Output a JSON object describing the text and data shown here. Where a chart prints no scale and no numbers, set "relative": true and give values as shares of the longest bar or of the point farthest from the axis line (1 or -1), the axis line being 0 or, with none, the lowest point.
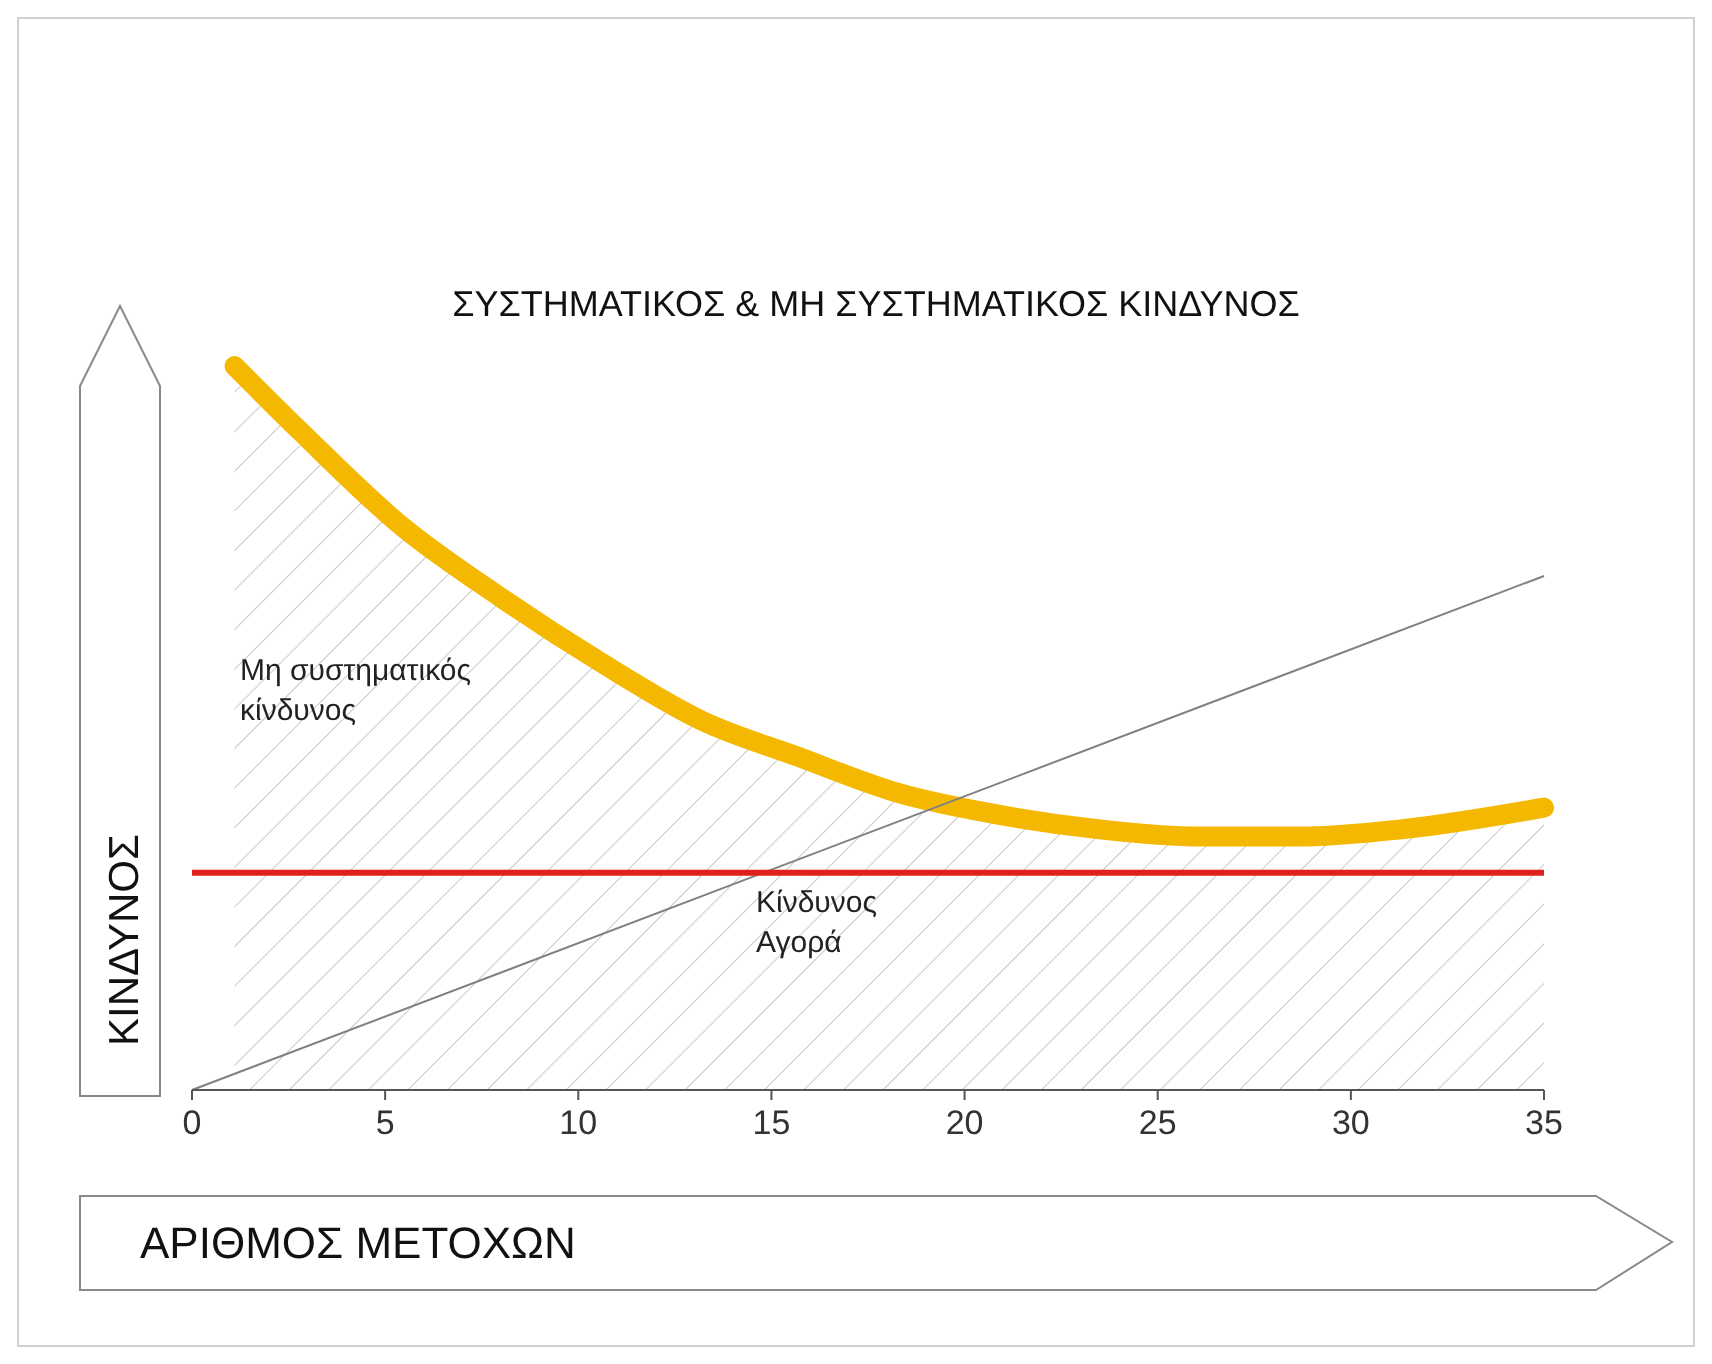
{
  "chart_data": {
    "type": "line",
    "title": "ΣΥΣΤΗΜΑΤΙΚΟΣ & ΜΗ ΣΥΣΤΗΜΑΤΙΚΟΣ ΚΙΝΔΥΝΟΣ",
    "xlabel": "ΑΡΙΘΜΟΣ ΜΕΤΟΧΩΝ",
    "ylabel": "ΚΙΝΔΥΝΟΣ",
    "relative": true,
    "xlim": [
      0,
      35
    ],
    "xticks": [
      0,
      5,
      10,
      15,
      20,
      25,
      30,
      35
    ],
    "tick_labels": "x",
    "grid": false,
    "marker": "none",
    "line_style": "solid",
    "annotations": [
      "Μη συστηματικός\nκίνδυνος",
      "Κίνδυνος\nΑγορά"
    ],
    "series": [
      {
        "type": "area",
        "color": "#f5b800",
        "x": [
          1.1,
          2.8,
          5.4,
          8,
          10.6,
          13.2,
          15.7,
          18.3,
          20.9,
          23.5,
          26.1,
          28.7,
          31.3,
          35
        ],
        "values": [
          1,
          0.91,
          0.78,
          0.68,
          0.59,
          0.51,
          0.46,
          0.41,
          0.38,
          0.36,
          0.35,
          0.35,
          0.36,
          0.39
        ]
      },
      {
        "color": "#808080",
        "x": [
          0,
          35
        ],
        "values": [
          0,
          0.71
        ]
      },
      {
        "color": "#e0201c",
        "x": [
          0,
          35
        ],
        "values": [
          0.3,
          0.3
        ]
      }
    ]
  }
}
